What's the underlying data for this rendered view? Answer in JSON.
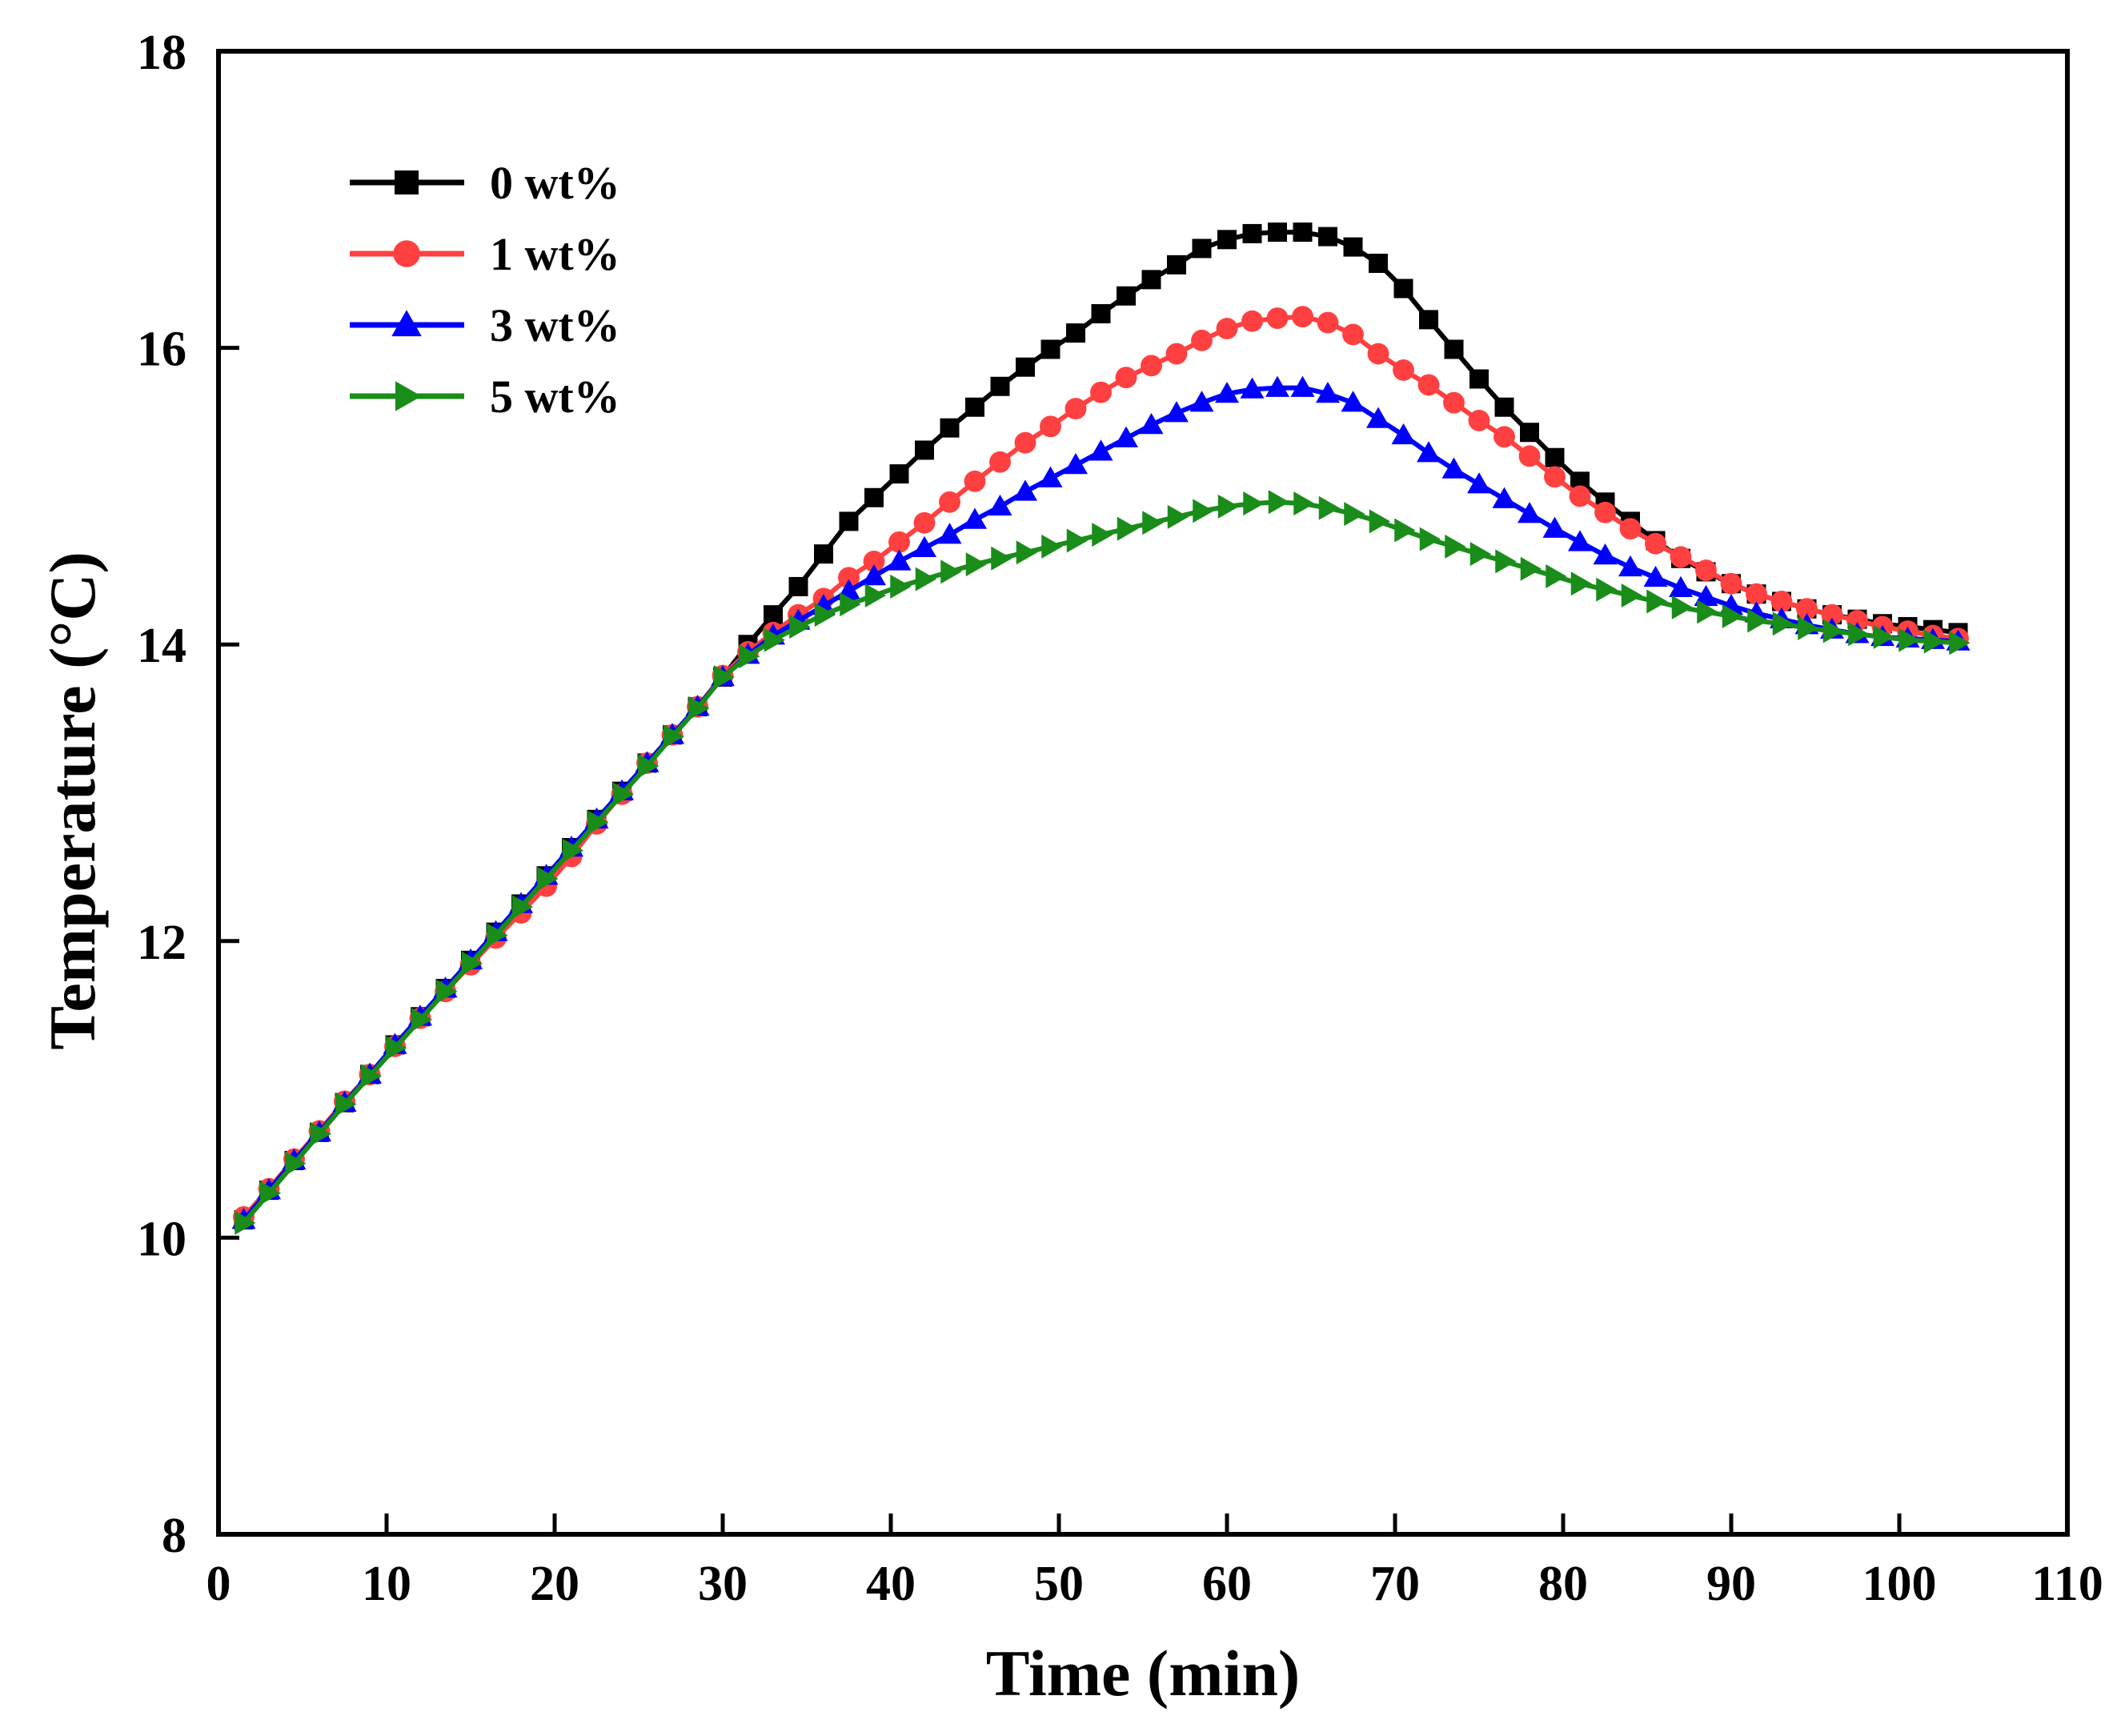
{
  "chart_data": {
    "type": "line",
    "title": "",
    "xlabel": "Time (min)",
    "ylabel": "Temperature (°C)",
    "xlim": [
      0,
      110
    ],
    "ylim": [
      8,
      18
    ],
    "xticks": [
      0,
      10,
      20,
      30,
      40,
      50,
      60,
      70,
      80,
      90,
      100,
      110
    ],
    "yticks": [
      8,
      10,
      12,
      14,
      16,
      18
    ],
    "xtick_labels": [
      "0",
      "10",
      "20",
      "30",
      "40",
      "50",
      "60",
      "70",
      "80",
      "90",
      "100",
      "110"
    ],
    "ytick_labels": [
      "8",
      "10",
      "12",
      "14",
      "16",
      "18"
    ],
    "grid": false,
    "legend_position": "top-left",
    "x": [
      1.5,
      3.0,
      4.5,
      6.0,
      7.5,
      9.0,
      10.5,
      12.0,
      13.5,
      15.0,
      16.5,
      18.0,
      19.5,
      21.0,
      22.5,
      24.0,
      25.5,
      27.0,
      28.5,
      30.0,
      31.5,
      33.0,
      34.5,
      36.0,
      37.5,
      39.0,
      40.5,
      42.0,
      43.5,
      45.0,
      46.5,
      48.0,
      49.5,
      51.0,
      52.5,
      54.0,
      55.5,
      57.0,
      58.5,
      60.0,
      61.5,
      63.0,
      64.5,
      66.0,
      67.5,
      69.0,
      70.5,
      72.0,
      73.5,
      75.0,
      76.5,
      78.0,
      79.5,
      81.0,
      82.5,
      84.0,
      85.5,
      87.0,
      88.5,
      90.0,
      91.5,
      93.0,
      94.5,
      96.0,
      97.5,
      99.0,
      100.5,
      102.0,
      103.5
    ],
    "series": [
      {
        "name": "0 wt%",
        "color": "#000000",
        "marker": "square",
        "values": [
          10.12,
          10.32,
          10.52,
          10.71,
          10.91,
          11.1,
          11.3,
          11.49,
          11.68,
          11.87,
          12.06,
          12.25,
          12.44,
          12.63,
          12.82,
          13.01,
          13.2,
          13.39,
          13.58,
          13.78,
          14.0,
          14.2,
          14.39,
          14.61,
          14.83,
          14.99,
          15.15,
          15.31,
          15.46,
          15.6,
          15.74,
          15.87,
          15.99,
          16.1,
          16.23,
          16.35,
          16.46,
          16.56,
          16.67,
          16.73,
          16.77,
          16.78,
          16.78,
          16.75,
          16.68,
          16.57,
          16.4,
          16.19,
          15.99,
          15.79,
          15.6,
          15.43,
          15.26,
          15.1,
          14.96,
          14.83,
          14.7,
          14.58,
          14.49,
          14.41,
          14.34,
          14.29,
          14.24,
          14.2,
          14.17,
          14.14,
          14.12,
          14.1,
          14.08
        ]
      },
      {
        "name": "1 wt%",
        "color": "#ff4040",
        "marker": "circle",
        "values": [
          10.14,
          10.33,
          10.53,
          10.72,
          10.92,
          11.1,
          11.29,
          11.48,
          11.66,
          11.84,
          12.02,
          12.19,
          12.37,
          12.57,
          12.79,
          12.99,
          13.2,
          13.39,
          13.58,
          13.79,
          13.95,
          14.08,
          14.2,
          14.31,
          14.45,
          14.56,
          14.69,
          14.82,
          14.96,
          15.1,
          15.23,
          15.36,
          15.47,
          15.59,
          15.7,
          15.8,
          15.88,
          15.96,
          16.05,
          16.13,
          16.18,
          16.2,
          16.21,
          16.17,
          16.09,
          15.96,
          15.85,
          15.75,
          15.63,
          15.51,
          15.4,
          15.27,
          15.13,
          15.0,
          14.89,
          14.78,
          14.68,
          14.59,
          14.5,
          14.41,
          14.34,
          14.29,
          14.24,
          14.2,
          14.16,
          14.12,
          14.09,
          14.06,
          14.04
        ]
      },
      {
        "name": "3 wt%",
        "color": "#0000ff",
        "marker": "triangle-up",
        "values": [
          10.12,
          10.32,
          10.52,
          10.71,
          10.91,
          11.1,
          11.3,
          11.49,
          11.68,
          11.87,
          12.06,
          12.25,
          12.44,
          12.63,
          12.82,
          13.01,
          13.2,
          13.39,
          13.58,
          13.78,
          13.93,
          14.06,
          14.16,
          14.26,
          14.36,
          14.46,
          14.56,
          14.65,
          14.74,
          14.84,
          14.93,
          15.03,
          15.12,
          15.21,
          15.3,
          15.39,
          15.48,
          15.56,
          15.63,
          15.69,
          15.72,
          15.73,
          15.73,
          15.69,
          15.63,
          15.52,
          15.41,
          15.29,
          15.18,
          15.08,
          14.98,
          14.88,
          14.78,
          14.69,
          14.6,
          14.52,
          14.45,
          14.38,
          14.32,
          14.26,
          14.21,
          14.17,
          14.13,
          14.1,
          14.07,
          14.05,
          14.04,
          14.03,
          14.02
        ]
      },
      {
        "name": "5 wt%",
        "color": "#1a8c1a",
        "marker": "triangle-right",
        "values": [
          10.1,
          10.3,
          10.5,
          10.7,
          10.9,
          11.09,
          11.28,
          11.47,
          11.66,
          11.85,
          12.04,
          12.23,
          12.42,
          12.61,
          12.8,
          12.99,
          13.18,
          13.38,
          13.57,
          13.78,
          13.92,
          14.03,
          14.12,
          14.2,
          14.27,
          14.33,
          14.39,
          14.44,
          14.49,
          14.54,
          14.58,
          14.62,
          14.66,
          14.7,
          14.74,
          14.78,
          14.82,
          14.86,
          14.9,
          14.93,
          14.95,
          14.96,
          14.95,
          14.92,
          14.88,
          14.83,
          14.77,
          14.71,
          14.66,
          14.61,
          14.56,
          14.51,
          14.46,
          14.41,
          14.37,
          14.33,
          14.29,
          14.25,
          14.22,
          14.19,
          14.16,
          14.14,
          14.11,
          14.09,
          14.07,
          14.05,
          14.03,
          14.02,
          14.01
        ]
      }
    ]
  }
}
